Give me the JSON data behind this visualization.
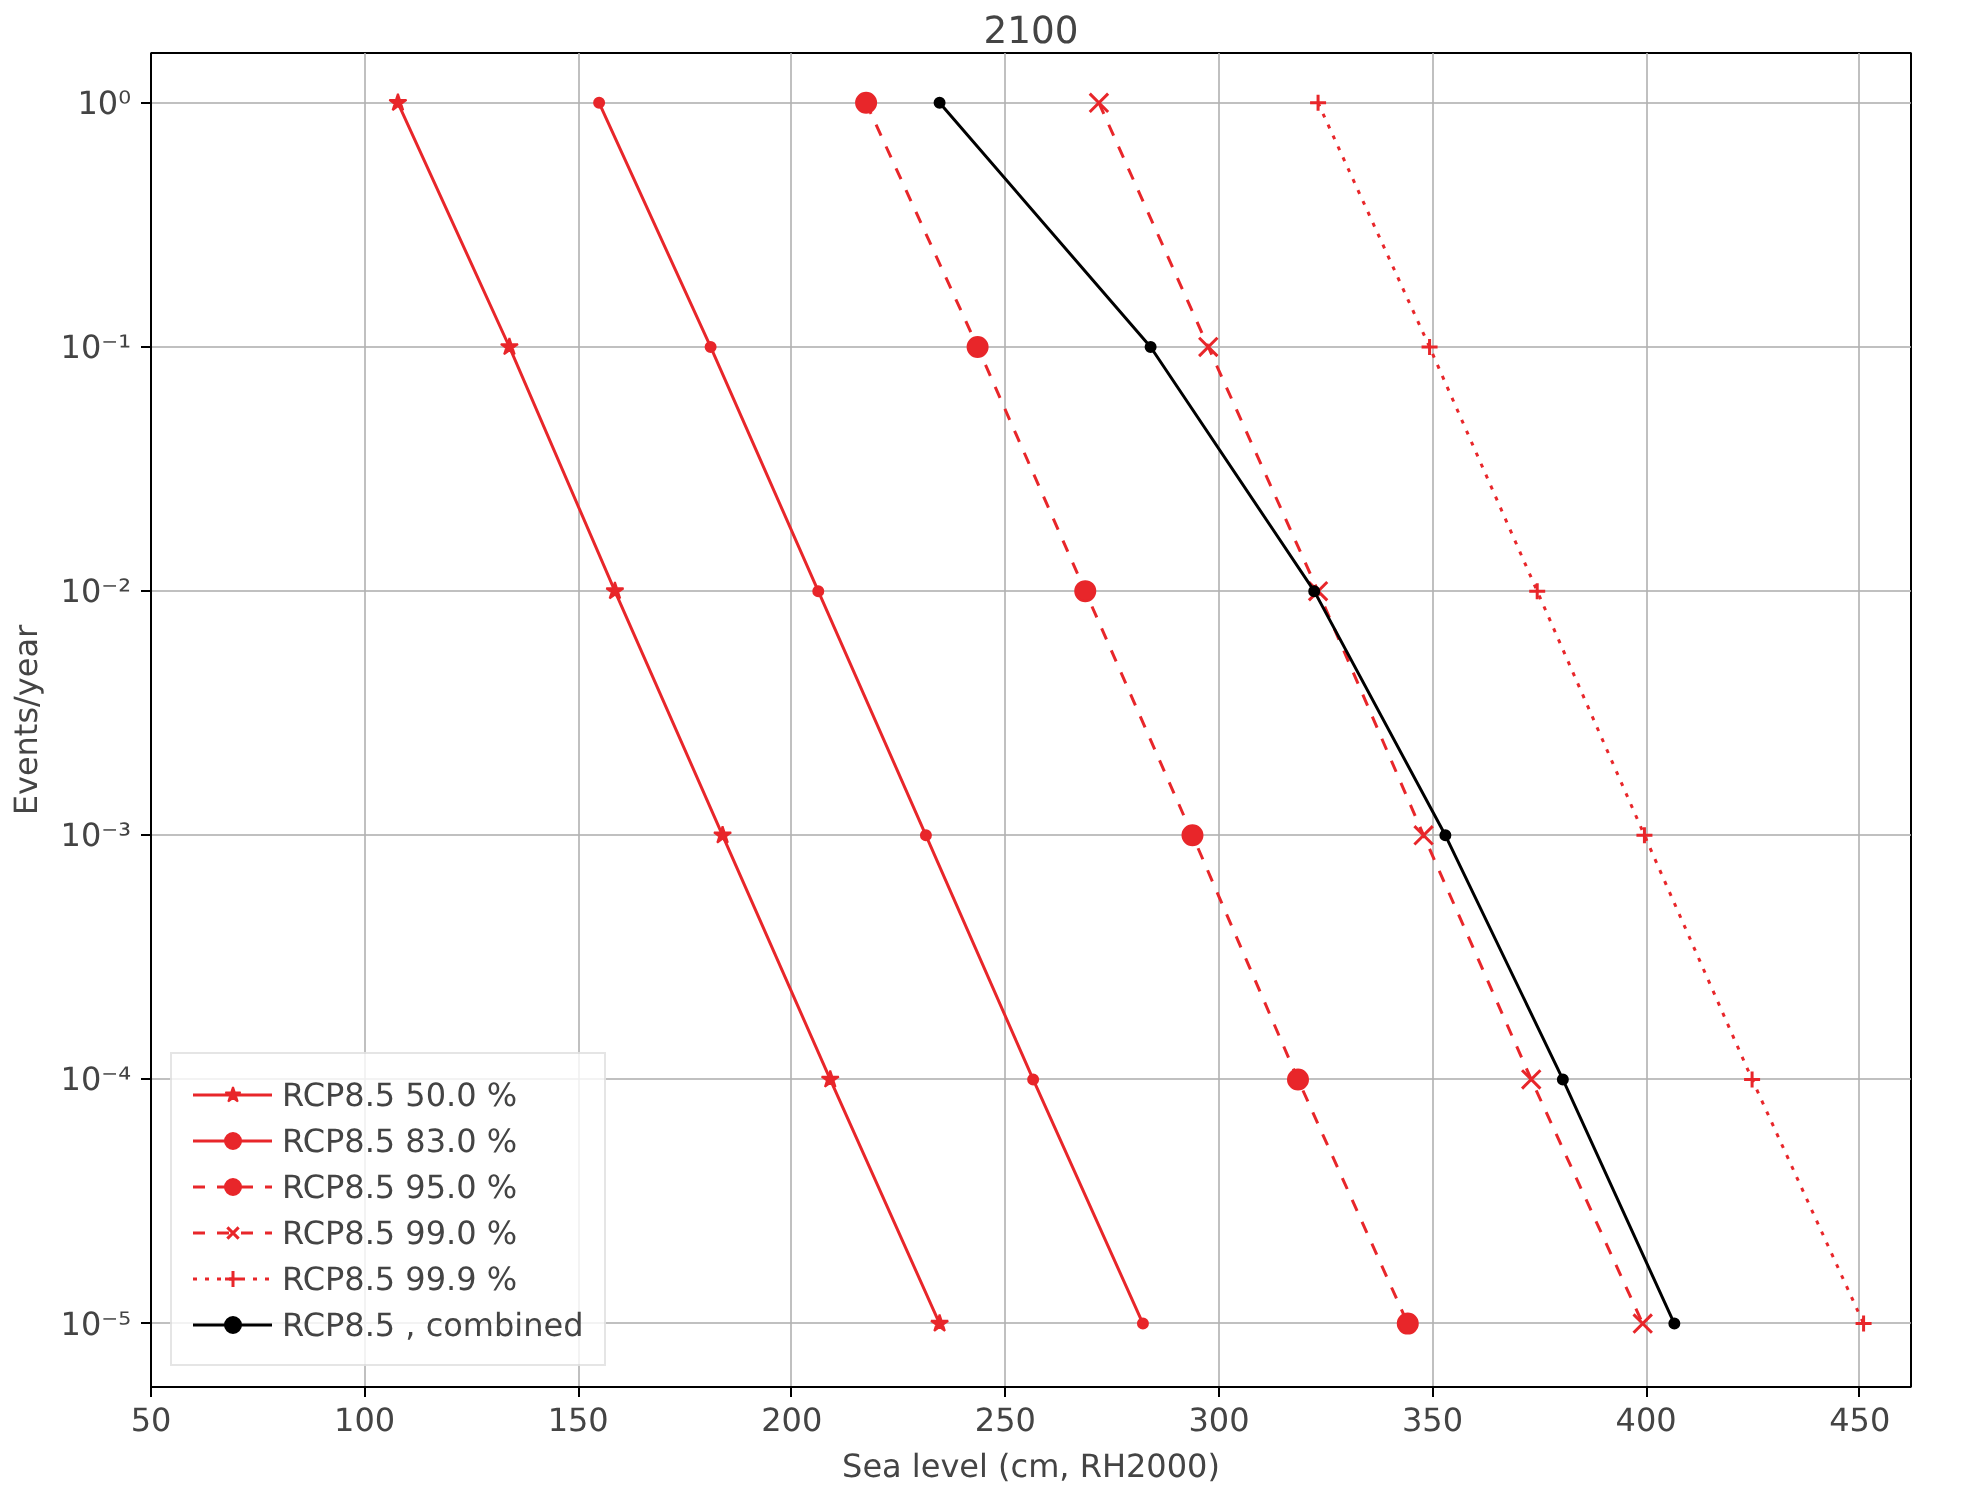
{
  "chart_data": {
    "type": "line",
    "title": "2100",
    "xlabel": "Sea level (cm, RH2000)",
    "ylabel": "Events/year",
    "log": "y",
    "grid": true,
    "legend": "bottom left",
    "xlim": [
      50,
      462
    ],
    "xticks": [
      50,
      100,
      150,
      200,
      250,
      300,
      350,
      400,
      450
    ],
    "ylim": [
      5.5e-06,
      1.6
    ],
    "yticks": [
      {
        "value": 1,
        "label": "10⁰"
      },
      {
        "value": 0.1,
        "label": "10⁻¹"
      },
      {
        "value": 0.01,
        "label": "10⁻²"
      },
      {
        "value": 0.001,
        "label": "10⁻³"
      },
      {
        "value": 0.0001,
        "label": "10⁻⁴"
      },
      {
        "value": 1e-05,
        "label": "10⁻⁵"
      }
    ],
    "series": [
      {
        "name": "RCP8.5 50.0 %",
        "color": "#e8262a",
        "marker": "star",
        "line_style": "solid",
        "x": [
          107.8,
          133.9,
          158.6,
          183.8,
          209,
          234.6
        ],
        "values": [
          1,
          0.1,
          0.01,
          0.001,
          0.0001,
          1e-05
        ]
      },
      {
        "name": "RCP8.5 83.0 %",
        "color": "#e8262a",
        "marker": "point",
        "line_style": "solid",
        "x": [
          154.9,
          181,
          206.2,
          231.4,
          256.5,
          282.2
        ],
        "values": [
          1,
          0.1,
          0.01,
          0.001,
          0.0001,
          1e-05
        ]
      },
      {
        "name": "RCP8.5 95.0 %",
        "color": "#e8262a",
        "marker": "circle",
        "line_style": "dashed",
        "x": [
          217.4,
          243.5,
          268.7,
          293.8,
          318.5,
          344.2
        ],
        "values": [
          1,
          0.1,
          0.01,
          0.001,
          0.0001,
          1e-05
        ]
      },
      {
        "name": "RCP8.5 99.0 %",
        "color": "#e8262a",
        "marker": "x",
        "line_style": "dashed",
        "x": [
          271.9,
          297.5,
          323.2,
          347.9,
          373.1,
          399.2
        ],
        "values": [
          1,
          0.1,
          0.01,
          0.001,
          0.0001,
          1e-05
        ]
      },
      {
        "name": "RCP8.5 99.9 %",
        "color": "#e8262a",
        "marker": "plus",
        "line_style": "dotted",
        "x": [
          323.2,
          349.3,
          374.5,
          399.6,
          424.8,
          450.9
        ],
        "values": [
          1,
          0.1,
          0.01,
          0.001,
          0.0001,
          1e-05
        ]
      },
      {
        "name": "RCP8.5 , combined",
        "color": "#000000",
        "marker": "point",
        "line_style": "solid",
        "x": [
          234.6,
          284,
          322.3,
          353,
          380.5,
          406.6
        ],
        "values": [
          1,
          0.1,
          0.01,
          0.001,
          0.0001,
          1e-05
        ]
      }
    ]
  }
}
